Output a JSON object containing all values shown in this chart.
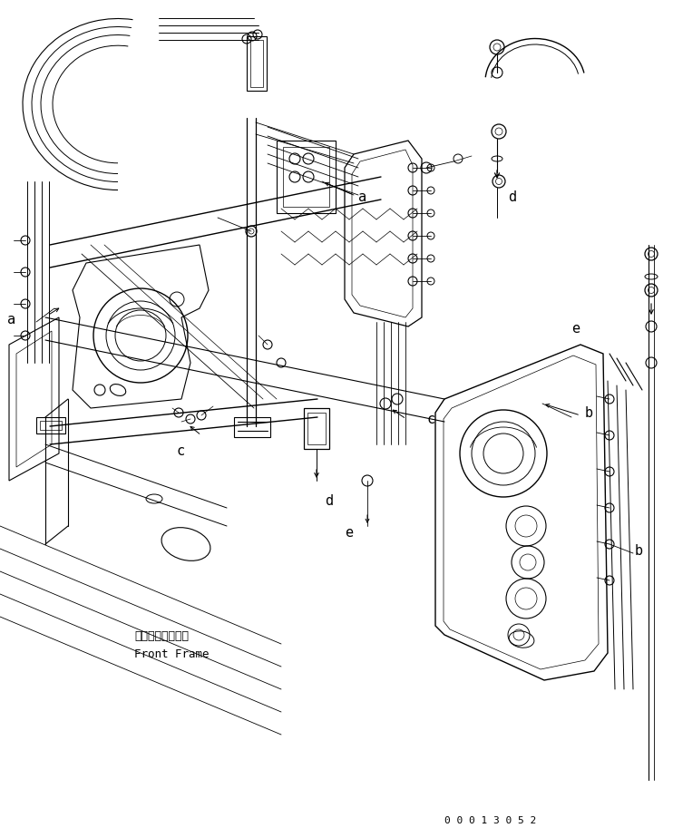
{
  "bg_color": "#ffffff",
  "line_color": "#000000",
  "fig_width": 7.42,
  "fig_height": 9.13,
  "dpi": 100,
  "front_frame_jp": "フロントフレーム",
  "front_frame_en": "Front Frame",
  "part_no": "0 0 0 1 3 0 5 2"
}
